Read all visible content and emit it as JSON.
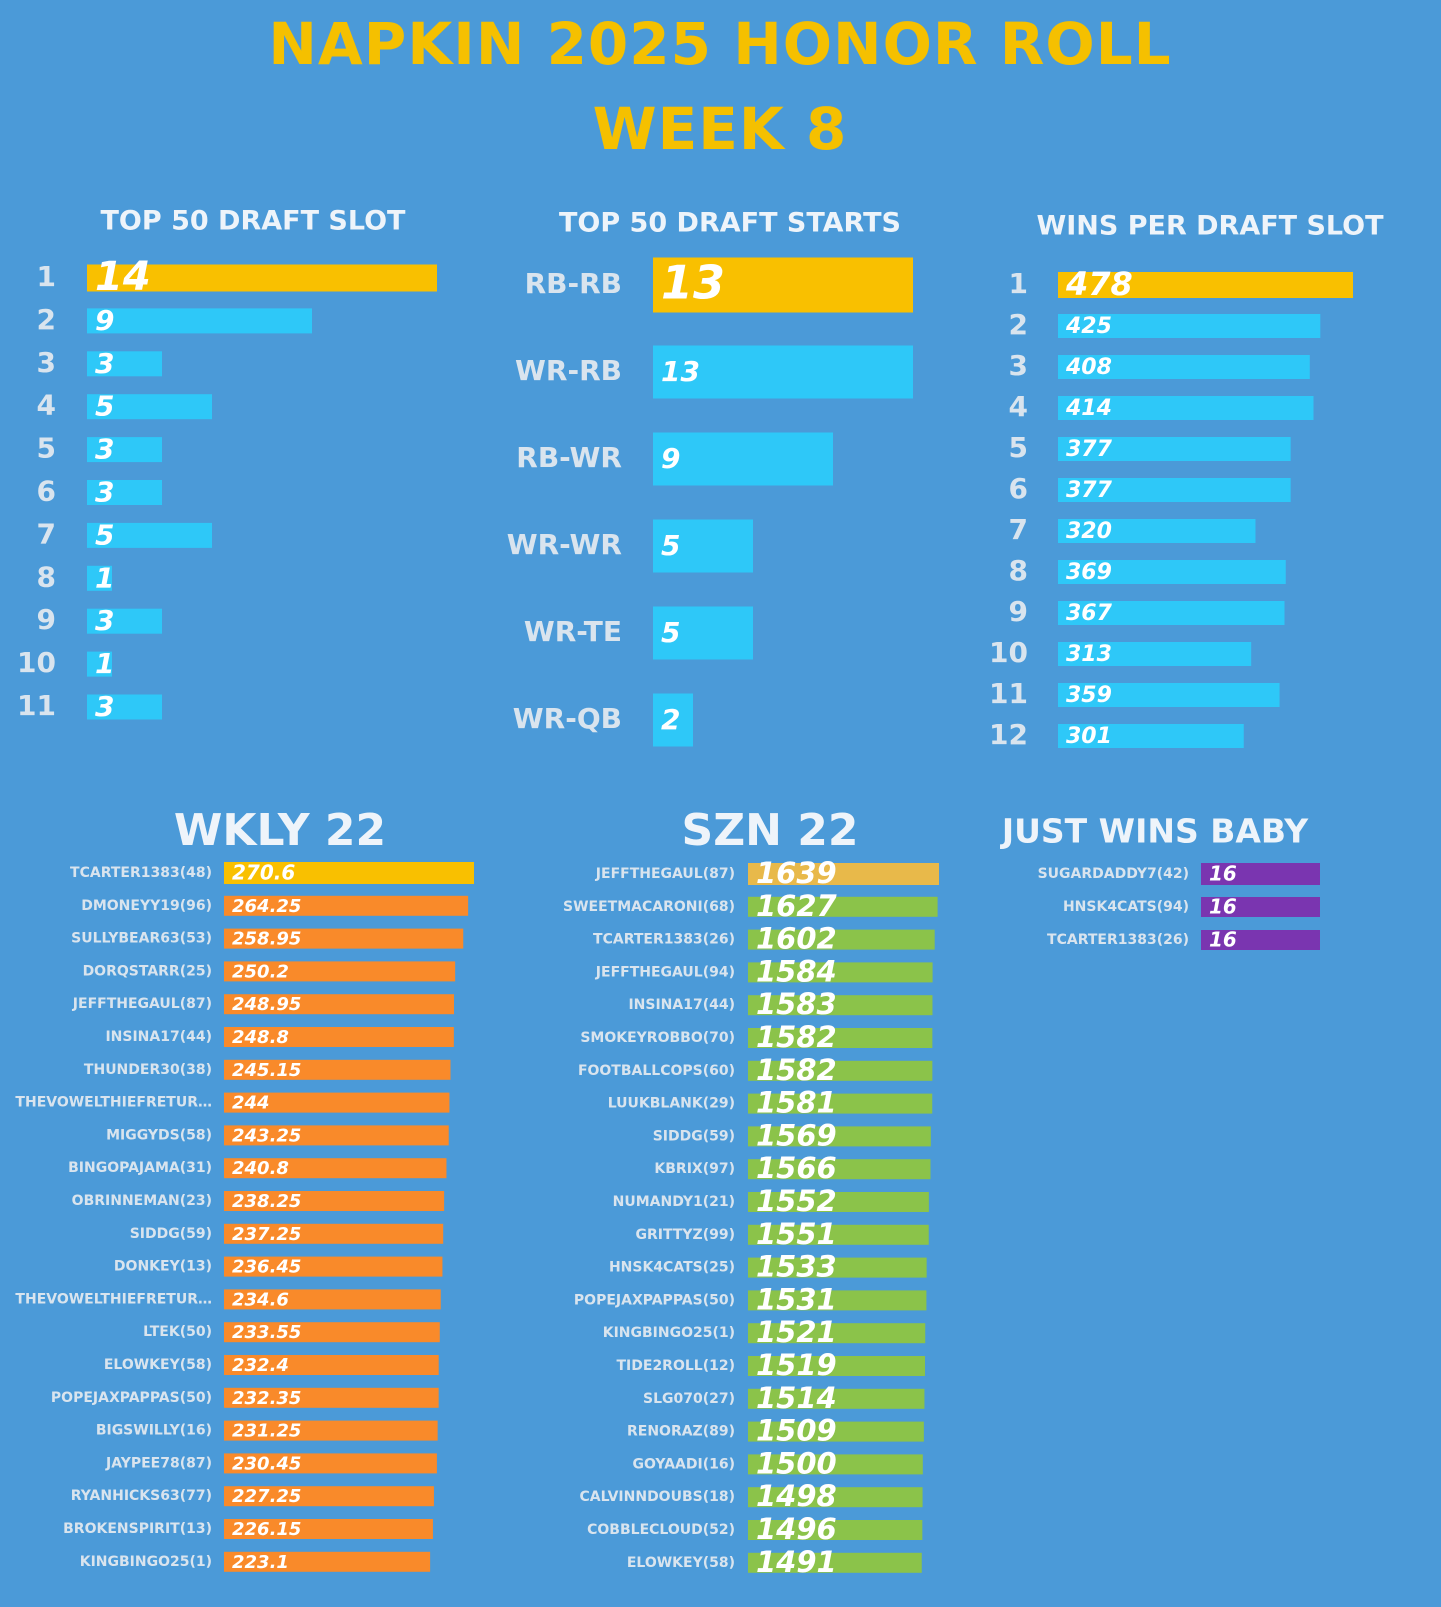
{
  "title": "NAPKIN 2025 HONOR ROLL",
  "subtitle": "WEEK 8",
  "chart_data": [
    {
      "type": "bar",
      "title": "TOP 50 DRAFT SLOT",
      "color": "#2ec8f8",
      "top_color": "#f9c000",
      "categories": [
        "1",
        "2",
        "3",
        "4",
        "5",
        "6",
        "7",
        "8",
        "9",
        "10",
        "11"
      ],
      "values": [
        14,
        9,
        3,
        5,
        3,
        3,
        5,
        1,
        3,
        1,
        3
      ]
    },
    {
      "type": "bar",
      "title": "TOP 50 DRAFT STARTS",
      "color": "#2ec8f8",
      "top_color": "#f9c000",
      "categories": [
        "RB-RB",
        "WR-RB",
        "RB-WR",
        "WR-WR",
        "WR-TE",
        "WR-QB"
      ],
      "values": [
        13,
        13,
        9,
        5,
        5,
        2
      ]
    },
    {
      "type": "bar",
      "title": "WINS PER DRAFT SLOT",
      "color": "#2ec8f8",
      "top_color": "#f9c000",
      "categories": [
        "1",
        "2",
        "3",
        "4",
        "5",
        "6",
        "7",
        "8",
        "9",
        "10",
        "11",
        "12"
      ],
      "values": [
        478,
        425,
        408,
        414,
        377,
        377,
        320,
        369,
        367,
        313,
        359,
        301
      ]
    },
    {
      "type": "bar",
      "title": "WKLY 22",
      "color": "#f98a2a",
      "top_color": "#f9c000",
      "categories": [
        "TCARTER1383(48)",
        "DMONEYY19(96)",
        "SULLYBEAR63(53)",
        "DORQSTARR(25)",
        "JEFFTHEGAUL(87)",
        "INSINA17(44)",
        "THUNDER30(38)",
        "THEVOWELTHIEFRETUR…",
        "MIGGYDS(58)",
        "BINGOPAJAMA(31)",
        "OBRINNEMAN(23)",
        "SIDDG(59)",
        "DONKEY(13)",
        "THEVOWELTHIEFRETUR…",
        "LTEK(50)",
        "ELOWKEY(58)",
        "POPEJAXPAPPAS(50)",
        "BIGSWILLY(16)",
        "JAYPEE78(87)",
        "RYANHICKS63(77)",
        "BROKENSPIRIT(13)",
        "KINGBINGO25(1)"
      ],
      "values": [
        270.6,
        264.25,
        258.95,
        250.2,
        248.95,
        248.8,
        245.15,
        244,
        243.25,
        240.8,
        238.25,
        237.25,
        236.45,
        234.6,
        233.55,
        232.4,
        232.35,
        231.25,
        230.45,
        227.25,
        226.15,
        223.1
      ]
    },
    {
      "type": "bar",
      "title": "SZN 22",
      "color": "#8bc34a",
      "top_color": "#e8b94a",
      "categories": [
        "JEFFTHEGAUL(87)",
        "SWEETMACARONI(68)",
        "TCARTER1383(26)",
        "JEFFTHEGAUL(94)",
        "INSINA17(44)",
        "SMOKEYROBBO(70)",
        "FOOTBALLCOPS(60)",
        "LUUKBLANK(29)",
        "SIDDG(59)",
        "KBRIX(97)",
        "NUMANDY1(21)",
        "GRITTYZ(99)",
        "HNSK4CATS(25)",
        "POPEJAXPAPPAS(50)",
        "KINGBINGO25(1)",
        "TIDE2ROLL(12)",
        "SLG070(27)",
        "RENORAZ(89)",
        "GOYAADI(16)",
        "CALVINNDOUBS(18)",
        "COBBLECLOUD(52)",
        "ELOWKEY(58)"
      ],
      "values": [
        1639,
        1627,
        1602,
        1584,
        1583,
        1582,
        1582,
        1581,
        1569,
        1566,
        1552,
        1551,
        1533,
        1531,
        1521,
        1519,
        1514,
        1509,
        1500,
        1498,
        1496,
        1491
      ]
    },
    {
      "type": "bar",
      "title": "JUST WINS BABY",
      "color": "#7a35b0",
      "top_color": "#7a35b0",
      "categories": [
        "SUGARDADDY7(42)",
        "HNSK4CATS(94)",
        "TCARTER1383(26)"
      ],
      "values": [
        16,
        16,
        16
      ]
    }
  ]
}
